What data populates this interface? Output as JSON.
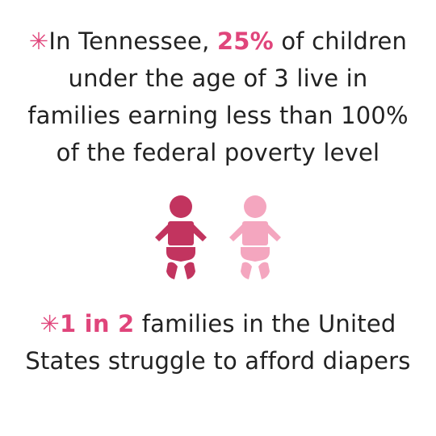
{
  "colors": {
    "accent": "#e0457b",
    "text": "#222222",
    "baby_dark": "#c2345f",
    "baby_light": "#f4a6bf"
  },
  "stat1": {
    "star": "✳",
    "prefix": "In Tennessee, ",
    "highlight": "25%",
    "line1_suffix": " of children",
    "line2": "under the age of 3 live in",
    "line3": "families earning less than 100%",
    "line4": "of the federal poverty level"
  },
  "icons": [
    "baby-icon",
    "baby-icon"
  ],
  "stat2": {
    "star": "✳",
    "highlight": "1 in 2",
    "line1_suffix": " families in the United",
    "line2": "States struggle to afford diapers"
  }
}
